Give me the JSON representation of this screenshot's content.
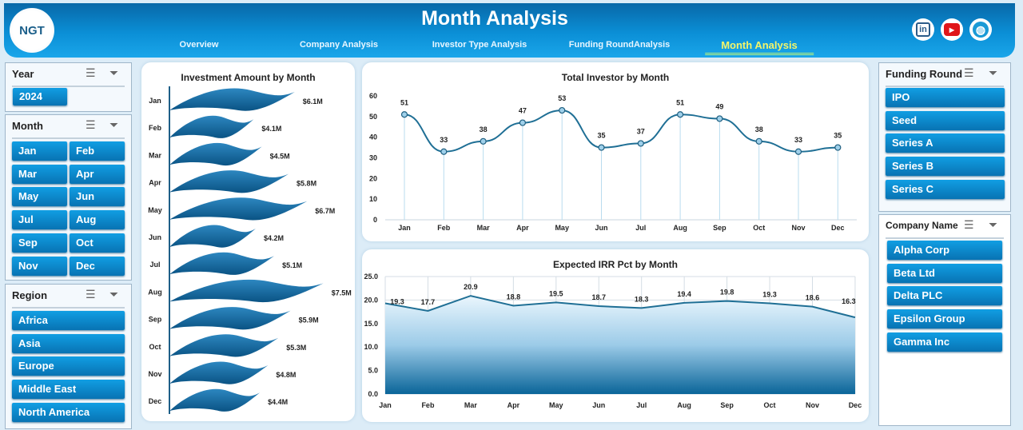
{
  "header": {
    "title": "Month Analysis",
    "logo_text": "NGT",
    "nav": [
      "Overview",
      "Company Analysis",
      "Investor Type Analysis",
      "Funding RoundAnalysis",
      "Month Analysis"
    ],
    "active_nav": "Month Analysis",
    "social": [
      {
        "icon": "linkedin-icon",
        "label": "in"
      },
      {
        "icon": "youtube-icon",
        "label": "▶"
      },
      {
        "icon": "globe-icon",
        "label": "◍"
      }
    ]
  },
  "slicers": {
    "year": {
      "title": "Year",
      "items": [
        "2024"
      ]
    },
    "month": {
      "title": "Month",
      "items": [
        "Jan",
        "Feb",
        "Mar",
        "Apr",
        "May",
        "Jun",
        "Jul",
        "Aug",
        "Sep",
        "Oct",
        "Nov",
        "Dec"
      ]
    },
    "region": {
      "title": "Region",
      "items": [
        "Africa",
        "Asia",
        "Europe",
        "Middle East",
        "North America"
      ]
    },
    "funding_round": {
      "title": "Funding Round",
      "items": [
        "IPO",
        "Seed",
        "Series A",
        "Series B",
        "Series C"
      ]
    },
    "company": {
      "title": "Company Name",
      "items": [
        "Alpha Corp",
        "Beta Ltd",
        "Delta PLC",
        "Epsilon Group",
        "Gamma Inc"
      ]
    }
  },
  "colors": {
    "header": "#0b8fd6",
    "bar": "#0d6aa0",
    "line": "#1f6f95",
    "active_nav": "#f4f56a"
  },
  "chart_data": [
    {
      "type": "bar",
      "orientation": "horizontal",
      "title": "Investment Amount by Month",
      "categories": [
        "Jan",
        "Feb",
        "Mar",
        "Apr",
        "May",
        "Jun",
        "Jul",
        "Aug",
        "Sep",
        "Oct",
        "Nov",
        "Dec"
      ],
      "values": [
        6.1,
        4.1,
        4.5,
        5.8,
        6.7,
        4.2,
        5.1,
        7.5,
        5.9,
        5.3,
        4.8,
        4.4
      ],
      "labels": [
        "$6.1M",
        "$4.1M",
        "$4.5M",
        "$5.8M",
        "$6.7M",
        "$4.2M",
        "$5.1M",
        "$7.5M",
        "$5.9M",
        "$5.3M",
        "$4.8M",
        "$4.4M"
      ],
      "unit": "$M"
    },
    {
      "type": "line",
      "title": "Total Investor by Month",
      "categories": [
        "Jan",
        "Feb",
        "Mar",
        "Apr",
        "May",
        "Jun",
        "Jul",
        "Aug",
        "Sep",
        "Oct",
        "Nov",
        "Dec"
      ],
      "values": [
        51,
        33,
        38,
        47,
        53,
        35,
        37,
        51,
        49,
        38,
        33,
        35
      ],
      "ylim": [
        0,
        60
      ],
      "yticks": [
        "0",
        "10",
        "20",
        "30",
        "40",
        "50",
        "60"
      ],
      "smooth": true
    },
    {
      "type": "area",
      "title": "Expected IRR Pct by Month",
      "categories": [
        "Jan",
        "Feb",
        "Mar",
        "Apr",
        "May",
        "Jun",
        "Jul",
        "Aug",
        "Sep",
        "Oct",
        "Nov",
        "Dec"
      ],
      "values": [
        19.3,
        17.7,
        20.9,
        18.8,
        19.5,
        18.7,
        18.3,
        19.4,
        19.8,
        19.3,
        18.6,
        16.3
      ],
      "labels": [
        "19.3",
        "17.7",
        "20.9",
        "18.8",
        "19.5",
        "18.7",
        "18.3",
        "19.4",
        "19.8",
        "19.3",
        "18.6",
        "16.3"
      ],
      "ylim": [
        0,
        25
      ],
      "yticks": [
        "0.0",
        "5.0",
        "10.0",
        "15.0",
        "20.0",
        "25.0"
      ],
      "grid": true
    }
  ]
}
